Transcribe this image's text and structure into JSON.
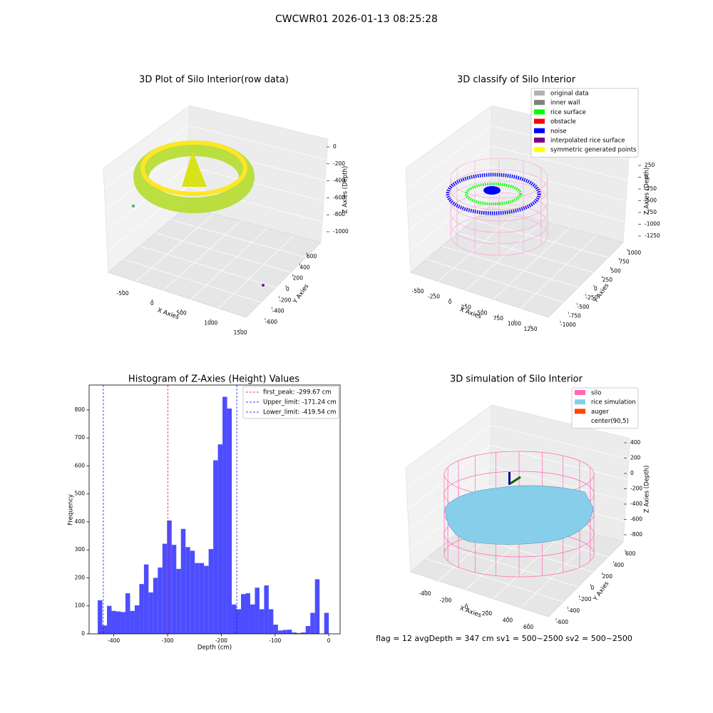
{
  "title": "CWCWR01 2026-01-13 08:25:28",
  "chart_data": [
    {
      "type": "scatter3d",
      "title": "3D Plot of Silo Interior(row data)",
      "xlabel": "X Axies",
      "ylabel": "Y Axies",
      "zlabel": "Z Axies (Depth)",
      "xticks": [
        -500,
        0,
        500,
        1000,
        1500
      ],
      "yticks": [
        -600,
        -400,
        -200,
        0,
        200,
        400,
        600
      ],
      "zticks": [
        0,
        -200,
        -400,
        -600,
        -800,
        -1000
      ]
    },
    {
      "type": "scatter3d",
      "title": "3D classify of Silo Interior",
      "xlabel": "X Axies",
      "ylabel": "Y Axies",
      "zlabel": "Z Axies (Depth)",
      "xticks": [
        -500,
        -250,
        0,
        250,
        500,
        750,
        1000,
        1250
      ],
      "yticks": [
        -1000,
        -750,
        -500,
        -250,
        0,
        250,
        500,
        750,
        1000
      ],
      "zticks": [
        250,
        0,
        -250,
        -500,
        -750,
        -1000,
        -1250
      ],
      "legend": [
        {
          "name": "original data",
          "color": "#b3b3b3"
        },
        {
          "name": "inner wall",
          "color": "#808080"
        },
        {
          "name": "rice surface",
          "color": "#00ff00"
        },
        {
          "name": "obstacle",
          "color": "#ff0000"
        },
        {
          "name": "noise",
          "color": "#0000ff"
        },
        {
          "name": "interpolated rice surface",
          "color": "#800080"
        },
        {
          "name": "symmetric generated points",
          "color": "#ffff00"
        }
      ]
    },
    {
      "type": "histogram",
      "title": "Histogram of Z-Axies (Height) Values",
      "xlabel": "Depth (cm)",
      "ylabel": "Frequency",
      "color": "#4d4dff",
      "bins": [
        -430,
        -421.4,
        -412.8,
        -404.2,
        -395.6,
        -387,
        -378.4,
        -369.8,
        -361.2,
        -352.6,
        -344,
        -335.4,
        -326.8,
        -318.2,
        -309.6,
        -301,
        -292.4,
        -283.8,
        -275.2,
        -266.6,
        -258,
        -249.4,
        -240.8,
        -232.2,
        -223.6,
        -215,
        -206.4,
        -197.8,
        -189.2,
        -180.6,
        -172,
        -163.4,
        -154.8,
        -146.2,
        -137.6,
        -129,
        -120.4,
        -111.8,
        -103.2,
        -94.6,
        -86,
        -77.4,
        -68.8,
        -60.2,
        -51.6,
        -43,
        -34.4,
        -25.8,
        -17.2,
        -8.6,
        0
      ],
      "values": [
        120,
        30,
        100,
        82,
        80,
        78,
        145,
        82,
        102,
        178,
        248,
        148,
        200,
        237,
        322,
        405,
        318,
        232,
        375,
        310,
        297,
        253,
        253,
        243,
        303,
        620,
        677,
        847,
        805,
        105,
        88,
        142,
        145,
        105,
        165,
        88,
        173,
        88,
        33,
        12,
        14,
        15,
        5,
        3,
        5,
        28,
        75,
        195,
        0,
        75
      ],
      "xlim": [
        -446,
        21
      ],
      "ylim": [
        0,
        889
      ],
      "xticks": [
        -400,
        -300,
        -200,
        -100,
        0
      ],
      "yticks": [
        0,
        100,
        200,
        300,
        400,
        500,
        600,
        700,
        800
      ],
      "lines": [
        {
          "name": "first_peak: -299.67 cm",
          "value": -299.67,
          "color": "#ff0000"
        },
        {
          "name": "Upper_limit: -171.24 cm",
          "value": -171.24,
          "color": "#0000ff"
        },
        {
          "name": "Lower_limit: -419.54 cm",
          "value": -419.54,
          "color": "#0000ff"
        }
      ]
    },
    {
      "type": "surface3d",
      "title": "3D simulation of Silo Interior",
      "xlabel": "X Axies",
      "ylabel": "Y Axies",
      "zlabel": "Z Axies (Depth)",
      "xticks": [
        -400,
        -200,
        0,
        200,
        400,
        600
      ],
      "yticks": [
        -600,
        -400,
        -200,
        0,
        200,
        400,
        600
      ],
      "zticks": [
        400,
        200,
        0,
        -200,
        -400,
        -600,
        -800
      ],
      "legend": [
        {
          "name": "silo",
          "color": "#ff69b4"
        },
        {
          "name": "rice simulation",
          "color": "#87ceeb"
        },
        {
          "name": "auger",
          "color": "#ff4500"
        },
        {
          "name": "center(90,5)",
          "color": "#ffffff"
        }
      ],
      "annotation": "flag = 12  avgDepth = 347 cm  sv1 = 500~2500  sv2 = 500~2500"
    }
  ]
}
